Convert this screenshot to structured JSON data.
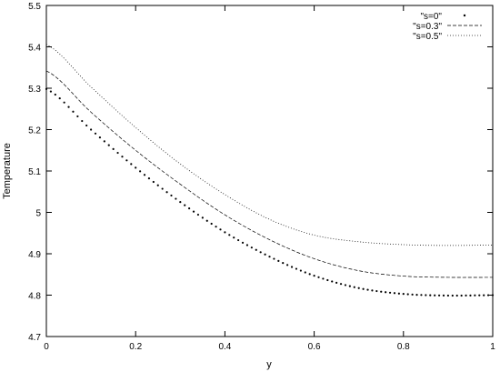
{
  "chart_data": {
    "type": "line",
    "xlabel": "y",
    "ylabel": "Temperature",
    "xlim": [
      0,
      1
    ],
    "ylim": [
      4.7,
      5.5
    ],
    "xticks": [
      "0",
      "0.2",
      "0.4",
      "0.6",
      "0.8",
      "1"
    ],
    "yticks": [
      "4.7",
      "4.8",
      "4.9",
      "5",
      "5.1",
      "5.2",
      "5.3",
      "5.4",
      "5.5"
    ],
    "grid": false,
    "legend_position": "top-right",
    "x": [
      0,
      0.1,
      0.2,
      0.3,
      0.4,
      0.5,
      0.6,
      0.7,
      0.8,
      0.9,
      1.0
    ],
    "series": [
      {
        "name": "\"s=0\"",
        "style": "points",
        "color": "#000000",
        "values": [
          5.298,
          5.2,
          5.108,
          5.025,
          4.952,
          4.893,
          4.847,
          4.817,
          4.803,
          4.799,
          4.8
        ]
      },
      {
        "name": "\"s=0.3\"",
        "style": "dashed",
        "color": "#000000",
        "values": [
          5.342,
          5.242,
          5.15,
          5.068,
          4.994,
          4.934,
          4.888,
          4.859,
          4.846,
          4.843,
          4.843
        ]
      },
      {
        "name": "\"s=0.5\"",
        "style": "dotted",
        "color": "#000000",
        "values": [
          5.406,
          5.303,
          5.205,
          5.117,
          5.043,
          4.983,
          4.945,
          4.929,
          4.922,
          4.92,
          4.921
        ]
      }
    ]
  }
}
